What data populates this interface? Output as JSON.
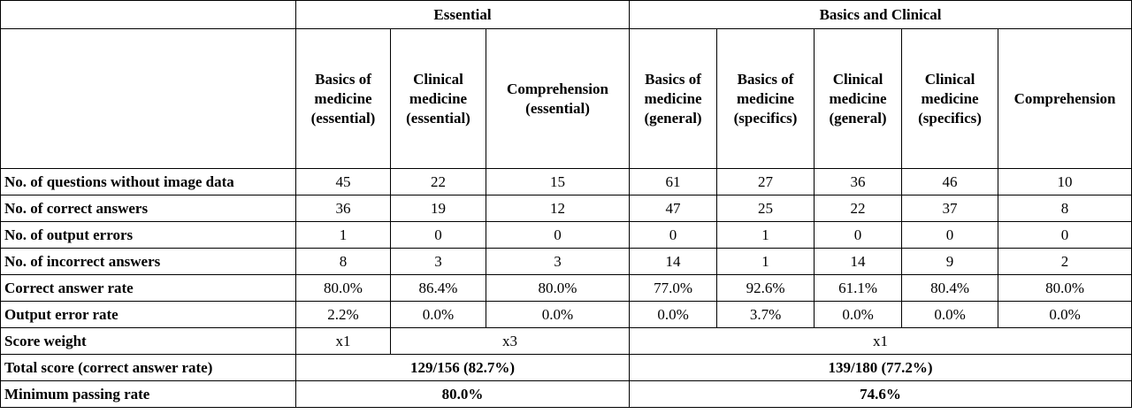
{
  "groups": {
    "essential": "Essential",
    "basics_clinical": "Basics and Clinical"
  },
  "columns": [
    [
      "Basics of",
      "medicine",
      "(essential)"
    ],
    [
      "Clinical",
      "medicine",
      "(essential)"
    ],
    [
      "Comprehension",
      "(essential)"
    ],
    [
      "Basics of",
      "medicine",
      "(general)"
    ],
    [
      "Basics of",
      "medicine",
      "(specifics)"
    ],
    [
      "Clinical",
      "medicine",
      "(general)"
    ],
    [
      "Clinical",
      "medicine",
      "(specifics)"
    ],
    [
      "Comprehension"
    ]
  ],
  "rows": {
    "questions": {
      "label": "No. of questions without image data",
      "values": [
        "45",
        "22",
        "15",
        "61",
        "27",
        "36",
        "46",
        "10"
      ]
    },
    "correct": {
      "label": "No. of correct answers",
      "values": [
        "36",
        "19",
        "12",
        "47",
        "25",
        "22",
        "37",
        "8"
      ]
    },
    "output_errors": {
      "label": "No. of output errors",
      "values": [
        "1",
        "0",
        "0",
        "0",
        "1",
        "0",
        "0",
        "0"
      ]
    },
    "incorrect": {
      "label": "No. of incorrect answers",
      "values": [
        "8",
        "3",
        "3",
        "14",
        "1",
        "14",
        "9",
        "2"
      ]
    },
    "correct_rate": {
      "label": "Correct answer rate",
      "values": [
        "80.0%",
        "86.4%",
        "80.0%",
        "77.0%",
        "92.6%",
        "61.1%",
        "80.4%",
        "80.0%"
      ]
    },
    "error_rate": {
      "label": "Output error rate",
      "values": [
        "2.2%",
        "0.0%",
        "0.0%",
        "0.0%",
        "3.7%",
        "0.0%",
        "0.0%",
        "0.0%"
      ]
    },
    "score_weight": {
      "label": "Score weight",
      "values": [
        "x1",
        "x3",
        "x1"
      ]
    },
    "total_score": {
      "label": "Total score (correct answer rate)",
      "values": [
        "129/156 (82.7%)",
        "139/180 (77.2%)"
      ]
    },
    "min_passing": {
      "label": "Minimum passing rate",
      "values": [
        "80.0%",
        "74.6%"
      ]
    }
  }
}
